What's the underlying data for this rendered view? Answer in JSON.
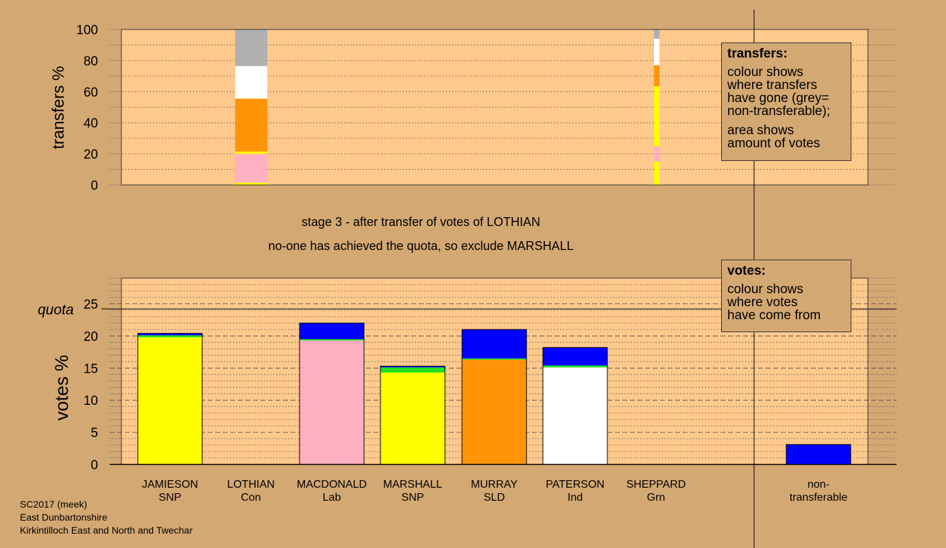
{
  "colors": {
    "background": "#d4a873",
    "plot_area": "#fdc98c",
    "SNP": "#ffff00",
    "Con": "#b0b0b0",
    "Lab": "#ffb0c0",
    "SLD": "#ff9408",
    "Ind": "#ffffff",
    "Grn": "#20e020",
    "non-transferable": "#0000ff"
  },
  "stage_text": {
    "line1": "stage 3 - after transfer of votes of LOTHIAN",
    "line2": "no-one has achieved the quota, so exclude MARSHALL"
  },
  "transfers_legend": {
    "title": "transfers:",
    "lines1": [
      "colour shows",
      "where transfers",
      "have gone (grey=",
      "non-transferable);"
    ],
    "lines2": [
      "area shows",
      "amount of votes"
    ]
  },
  "votes_legend": {
    "title": "votes:",
    "lines": [
      "colour shows",
      "where votes",
      "have come from"
    ]
  },
  "footer": {
    "line1": "SC2017 (meek)",
    "line2": "East Dunbartonshire",
    "line3": "Kirkintilloch East and North and Twechar"
  },
  "chart_data": [
    {
      "type": "bar",
      "stacked": true,
      "ylabel": "transfers %",
      "ylim": [
        0,
        100
      ],
      "yticks": [
        0,
        20,
        40,
        60,
        80,
        100
      ],
      "grid": "dotted",
      "columns": [
        {
          "candidate": "LOTHIAN",
          "width_share": "wide",
          "segments": [
            {
              "to": "JAMIESON",
              "color": "SNP",
              "value": 1.5
            },
            {
              "to": "MACDONALD",
              "color": "Lab",
              "value": 18.5
            },
            {
              "to": "MARSHALL",
              "color": "SNP",
              "value": 1.5
            },
            {
              "to": "MURRAY",
              "color": "SLD",
              "value": 34
            },
            {
              "to": "PATERSON",
              "color": "Ind",
              "value": 21
            },
            {
              "to": "non-transferable",
              "color": "Con",
              "value": 23.5
            }
          ]
        },
        {
          "candidate": "SHEPPARD",
          "width_share": "narrow",
          "segments": [
            {
              "to": "JAMIESON",
              "color": "SNP",
              "value": 15
            },
            {
              "to": "MACDONALD",
              "color": "Lab",
              "value": 10
            },
            {
              "to": "MARSHALL",
              "color": "SNP",
              "value": 38.5
            },
            {
              "to": "MURRAY",
              "color": "SLD",
              "value": 13.5
            },
            {
              "to": "PATERSON",
              "color": "Ind",
              "value": 17
            },
            {
              "to": "non-transferable",
              "color": "Con",
              "value": 6
            }
          ]
        }
      ]
    },
    {
      "type": "bar",
      "stacked": true,
      "ylabel": "votes %",
      "ylim": [
        0,
        29
      ],
      "yticks": [
        0,
        5,
        10,
        15,
        20,
        25
      ],
      "quota": 24.2,
      "quota_label": "quota",
      "grid": "dashed",
      "categories": [
        {
          "name": "JAMIESON",
          "party": "SNP"
        },
        {
          "name": "LOTHIAN",
          "party": "Con"
        },
        {
          "name": "MACDONALD",
          "party": "Lab"
        },
        {
          "name": "MARSHALL",
          "party": "SNP"
        },
        {
          "name": "MURRAY",
          "party": "SLD"
        },
        {
          "name": "PATERSON",
          "party": "Ind"
        },
        {
          "name": "SHEPPARD",
          "party": "Grn"
        },
        {
          "name": "non-",
          "party": "transferable"
        }
      ],
      "bars": [
        {
          "category": "JAMIESON",
          "segments": [
            {
              "from": "first preferences",
              "color": "SNP",
              "value": 19.8
            },
            {
              "from": "SHEPPARD",
              "color": "Grn",
              "value": 0.3
            },
            {
              "from": "LOTHIAN",
              "color": "non-transferable",
              "value": 0.3
            }
          ]
        },
        {
          "category": "LOTHIAN",
          "segments": []
        },
        {
          "category": "MACDONALD",
          "segments": [
            {
              "from": "first preferences",
              "color": "Lab",
              "value": 19.3
            },
            {
              "from": "SHEPPARD",
              "color": "Grn",
              "value": 0.2
            },
            {
              "from": "LOTHIAN",
              "color": "non-transferable",
              "value": 2.5
            }
          ]
        },
        {
          "category": "MARSHALL",
          "segments": [
            {
              "from": "first preferences",
              "color": "SNP",
              "value": 14.3
            },
            {
              "from": "SHEPPARD",
              "color": "Grn",
              "value": 0.8
            },
            {
              "from": "LOTHIAN",
              "color": "non-transferable",
              "value": 0.2
            }
          ]
        },
        {
          "category": "MURRAY",
          "segments": [
            {
              "from": "first preferences",
              "color": "SLD",
              "value": 16.3
            },
            {
              "from": "SHEPPARD",
              "color": "Grn",
              "value": 0.2
            },
            {
              "from": "LOTHIAN",
              "color": "non-transferable",
              "value": 4.5
            }
          ]
        },
        {
          "category": "PATERSON",
          "segments": [
            {
              "from": "first preferences",
              "color": "Ind",
              "value": 15.1
            },
            {
              "from": "SHEPPARD",
              "color": "Grn",
              "value": 0.3
            },
            {
              "from": "LOTHIAN",
              "color": "non-transferable",
              "value": 2.8
            }
          ]
        },
        {
          "category": "SHEPPARD",
          "segments": []
        },
        {
          "category": "non-transferable",
          "segments": [
            {
              "from": "LOTHIAN",
              "color": "non-transferable",
              "value": 3.1
            }
          ]
        }
      ]
    }
  ]
}
